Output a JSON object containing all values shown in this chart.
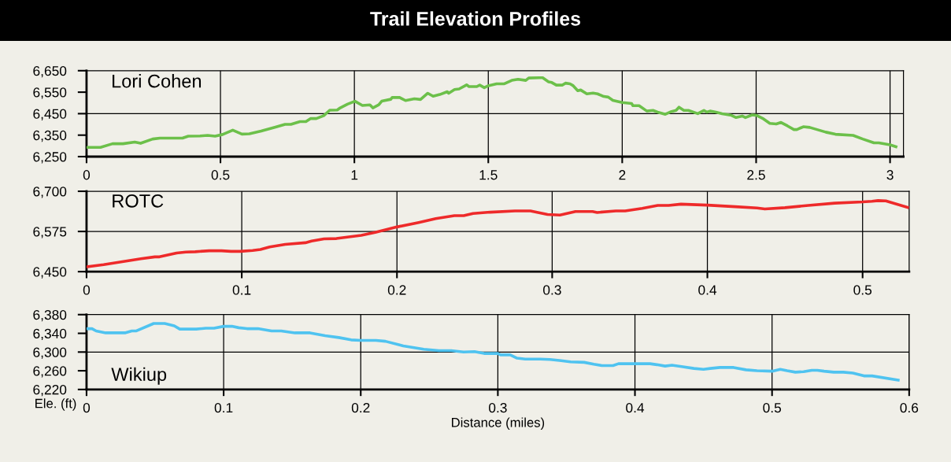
{
  "chart_data": [
    {
      "type": "line",
      "title": "Trail Elevation Profiles",
      "series": [
        {
          "name": "Lori Cohen",
          "color": "#6cc04a",
          "x": [
            0,
            0.052,
            0.097,
            0.136,
            0.18,
            0.202,
            0.247,
            0.274,
            0.358,
            0.38,
            0.424,
            0.452,
            0.48,
            0.508,
            0.546,
            0.58,
            0.608,
            0.652,
            0.708,
            0.741,
            0.763,
            0.797,
            0.819,
            0.836,
            0.858,
            0.886,
            0.908,
            0.936,
            0.947,
            0.974,
            1.002,
            1.03,
            1.058,
            1.069,
            1.091,
            1.102,
            1.136,
            1.141,
            1.169,
            1.191,
            1.224,
            1.247,
            1.274,
            1.294,
            1.319,
            1.347,
            1.352,
            1.374,
            1.391,
            1.419,
            1.428,
            1.457,
            1.468,
            1.485,
            1.5,
            1.531,
            1.56,
            1.588,
            1.611,
            1.64,
            1.651,
            1.691,
            1.703,
            1.725,
            1.737,
            1.754,
            1.777,
            1.788,
            1.805,
            1.817,
            1.834,
            1.845,
            1.868,
            1.891,
            1.908,
            1.931,
            1.948,
            1.965,
            2.0,
            2.035,
            2.04,
            2.063,
            2.092,
            2.115,
            2.132,
            2.161,
            2.184,
            2.201,
            2.212,
            2.23,
            2.247,
            2.282,
            2.305,
            2.316,
            2.328,
            2.35,
            2.373,
            2.408,
            2.425,
            2.448,
            2.46,
            2.485,
            2.502,
            2.527,
            2.551,
            2.575,
            2.593,
            2.617,
            2.641,
            2.652,
            2.676,
            2.7,
            2.76,
            2.796,
            2.862,
            2.898,
            2.94,
            2.958,
            3.0,
            3.022
          ],
          "values": [
            6293,
            6293,
            6310,
            6310,
            6318,
            6312,
            6332,
            6336,
            6336,
            6345,
            6346,
            6349,
            6345,
            6353,
            6373,
            6355,
            6356,
            6369,
            6388,
            6400,
            6400,
            6413,
            6413,
            6427,
            6427,
            6441,
            6466,
            6467,
            6477,
            6494,
            6508,
            6488,
            6491,
            6477,
            6491,
            6508,
            6517,
            6525,
            6525,
            6511,
            6519,
            6516,
            6545,
            6531,
            6539,
            6552,
            6545,
            6562,
            6565,
            6584,
            6576,
            6576,
            6583,
            6571,
            6580,
            6589,
            6589,
            6605,
            6610,
            6605,
            6616,
            6617,
            6617,
            6598,
            6595,
            6583,
            6583,
            6592,
            6589,
            6580,
            6557,
            6560,
            6542,
            6546,
            6542,
            6530,
            6527,
            6512,
            6502,
            6497,
            6487,
            6487,
            6462,
            6465,
            6457,
            6447,
            6460,
            6465,
            6480,
            6465,
            6465,
            6450,
            6465,
            6457,
            6462,
            6457,
            6450,
            6442,
            6432,
            6439,
            6432,
            6444,
            6442,
            6426,
            6405,
            6402,
            6409,
            6393,
            6376,
            6376,
            6389,
            6386,
            6364,
            6354,
            6349,
            6332,
            6314,
            6314,
            6305,
            6296
          ]
        }
      ],
      "xlim": [
        0,
        3.05
      ],
      "xticks": [
        0,
        0.5,
        1,
        1.5,
        2,
        2.5,
        3
      ],
      "ylim": [
        6250,
        6650
      ],
      "yticks": [
        {
          "value": 6250,
          "label": "6,250"
        },
        {
          "value": 6350,
          "label": "6,350"
        },
        {
          "value": 6450,
          "label": "6,450"
        },
        {
          "value": 6550,
          "label": "6,550"
        },
        {
          "value": 6650,
          "label": "6,650"
        }
      ],
      "grid": "x",
      "ref_lines": [
        {
          "axis": "y",
          "value": 6450,
          "color": "#000000"
        }
      ],
      "marker": "none",
      "line_style": "solid"
    },
    {
      "type": "line",
      "series": [
        {
          "name": "ROTC",
          "color": "#ee2a2a",
          "x": [
            0,
            0.011,
            0.023,
            0.035,
            0.044,
            0.047,
            0.058,
            0.064,
            0.07,
            0.079,
            0.087,
            0.093,
            0.099,
            0.107,
            0.112,
            0.118,
            0.128,
            0.141,
            0.145,
            0.153,
            0.161,
            0.177,
            0.186,
            0.2,
            0.214,
            0.225,
            0.237,
            0.243,
            0.249,
            0.26,
            0.276,
            0.286,
            0.297,
            0.305,
            0.315,
            0.326,
            0.329,
            0.341,
            0.347,
            0.358,
            0.368,
            0.375,
            0.383,
            0.4,
            0.418,
            0.432,
            0.437,
            0.45,
            0.465,
            0.482,
            0.5,
            0.506,
            0.51,
            0.515,
            0.529
          ],
          "values": [
            6465,
            6472,
            6481,
            6490,
            6496,
            6496,
            6508,
            6511,
            6512,
            6515,
            6515,
            6513,
            6513,
            6516,
            6519,
            6527,
            6535,
            6540,
            6545,
            6552,
            6553,
            6563,
            6572,
            6589,
            6603,
            6615,
            6624,
            6624,
            6631,
            6635,
            6639,
            6639,
            6628,
            6626,
            6637,
            6637,
            6634,
            6639,
            6639,
            6647,
            6656,
            6656,
            6660,
            6657,
            6652,
            6648,
            6645,
            6649,
            6656,
            6663,
            6667,
            6669,
            6671,
            6670,
            6650
          ]
        }
      ],
      "xlim": [
        0,
        0.53
      ],
      "xticks": [
        0,
        0.1,
        0.2,
        0.3,
        0.4,
        0.5
      ],
      "ylim": [
        6450,
        6700
      ],
      "yticks": [
        {
          "value": 6450,
          "label": "6,450"
        },
        {
          "value": 6575,
          "label": "6,575"
        },
        {
          "value": 6700,
          "label": "6,700"
        }
      ],
      "grid": "x",
      "ref_lines": [
        {
          "axis": "y",
          "value": 6575,
          "color": "#000000"
        }
      ],
      "marker": "none",
      "line_style": "solid"
    },
    {
      "type": "line",
      "xlabel": "Distance (miles)",
      "ylabel": "Ele. (ft)",
      "series": [
        {
          "name": "Wikiup",
          "color": "#4fc3f0",
          "x": [
            0,
            0.004,
            0.007,
            0.014,
            0.028,
            0.033,
            0.036,
            0.049,
            0.057,
            0.064,
            0.068,
            0.08,
            0.087,
            0.093,
            0.1,
            0.106,
            0.111,
            0.117,
            0.125,
            0.135,
            0.142,
            0.152,
            0.163,
            0.174,
            0.184,
            0.193,
            0.2,
            0.211,
            0.218,
            0.231,
            0.246,
            0.257,
            0.266,
            0.275,
            0.283,
            0.29,
            0.3,
            0.302,
            0.309,
            0.314,
            0.32,
            0.331,
            0.338,
            0.345,
            0.353,
            0.363,
            0.37,
            0.376,
            0.384,
            0.388,
            0.4,
            0.411,
            0.416,
            0.422,
            0.427,
            0.434,
            0.443,
            0.45,
            0.455,
            0.462,
            0.472,
            0.481,
            0.489,
            0.5,
            0.506,
            0.511,
            0.517,
            0.523,
            0.529,
            0.533,
            0.538,
            0.545,
            0.552,
            0.559,
            0.567,
            0.573,
            0.592
          ],
          "values": [
            6350,
            6350,
            6345,
            6341,
            6341,
            6345,
            6345,
            6361,
            6361,
            6356,
            6349,
            6349,
            6351,
            6351,
            6355,
            6355,
            6352,
            6350,
            6350,
            6345,
            6345,
            6341,
            6341,
            6335,
            6331,
            6326,
            6325,
            6325,
            6323,
            6313,
            6306,
            6303,
            6303,
            6300,
            6301,
            6297,
            6297,
            6294,
            6294,
            6287,
            6285,
            6285,
            6284,
            6282,
            6279,
            6278,
            6274,
            6271,
            6271,
            6275,
            6275,
            6275,
            6273,
            6270,
            6272,
            6269,
            6265,
            6263,
            6265,
            6267,
            6267,
            6262,
            6260,
            6259,
            6263,
            6260,
            6257,
            6258,
            6261,
            6261,
            6259,
            6257,
            6257,
            6255,
            6249,
            6249,
            6240
          ]
        }
      ],
      "xlim": [
        0,
        0.6
      ],
      "xticks": [
        0,
        0.1,
        0.2,
        0.3,
        0.4,
        0.5,
        0.6
      ],
      "ylim": [
        6220,
        6380
      ],
      "yticks": [
        {
          "value": 6220,
          "label": "6,220"
        },
        {
          "value": 6260,
          "label": "6,260"
        },
        {
          "value": 6300,
          "label": "6,300"
        },
        {
          "value": 6340,
          "label": "6,340"
        },
        {
          "value": 6380,
          "label": "6,380"
        }
      ],
      "grid": "x",
      "ref_lines": [
        {
          "axis": "y",
          "value": 6300,
          "color": "#000000"
        }
      ],
      "marker": "none",
      "line_style": "solid"
    }
  ]
}
